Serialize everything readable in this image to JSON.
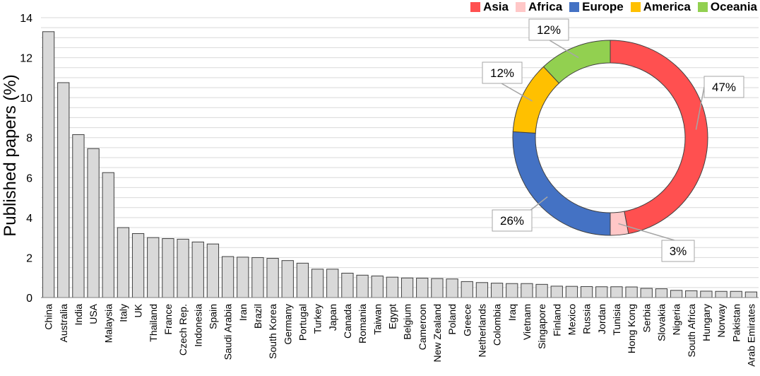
{
  "chart_data": [
    {
      "type": "bar",
      "ylabel": "Published papers (%)",
      "ylim": [
        0,
        14
      ],
      "yticks": [
        0,
        2,
        4,
        6,
        8,
        10,
        12,
        14
      ],
      "categories": [
        "China",
        "Australia",
        "India",
        "USA",
        "Malaysia",
        "Italy",
        "UK",
        "Thailand",
        "France",
        "Czech Rep.",
        "Indonesia",
        "Spain",
        "Saudi Arabia",
        "Iran",
        "Brazil",
        "South Korea",
        "Germany",
        "Portugal",
        "Turkey",
        "Japan",
        "Canada",
        "Romania",
        "Taiwan",
        "Egypt",
        "Belgium",
        "Cameroon",
        "New Zealand",
        "Poland",
        "Greece",
        "Netherlands",
        "Colombia",
        "Iraq",
        "Vietnam",
        "Singapore",
        "Finland",
        "Mexico",
        "Russia",
        "Jordan",
        "Tunisia",
        "Hong Kong",
        "Serbia",
        "Slovakia",
        "Nigeria",
        "South Africa",
        "Hungary",
        "Norway",
        "Pakistan",
        "Arab Emirates"
      ],
      "values": [
        13.3,
        10.75,
        8.15,
        7.45,
        6.25,
        3.5,
        3.2,
        3.0,
        2.95,
        2.92,
        2.78,
        2.68,
        2.05,
        2.02,
        2.0,
        1.96,
        1.85,
        1.72,
        1.42,
        1.42,
        1.22,
        1.12,
        1.08,
        1.02,
        0.98,
        0.97,
        0.95,
        0.93,
        0.8,
        0.75,
        0.72,
        0.7,
        0.7,
        0.66,
        0.57,
        0.56,
        0.55,
        0.54,
        0.54,
        0.53,
        0.46,
        0.44,
        0.36,
        0.34,
        0.32,
        0.31,
        0.31,
        0.28
      ],
      "grid": true,
      "bar_color": "#d9d9d9"
    },
    {
      "type": "pie",
      "donut": true,
      "categories": [
        "Asia",
        "Africa",
        "Europe",
        "America",
        "Oceania"
      ],
      "values": [
        47,
        3,
        26,
        12,
        12
      ],
      "labels": [
        "47%",
        "3%",
        "26%",
        "12%",
        "12%"
      ],
      "colors": [
        "#ff5050",
        "#ffc7c7",
        "#4472c4",
        "#ffc000",
        "#92d050"
      ],
      "legend_position": "top-right"
    }
  ],
  "legend": [
    {
      "name": "Asia",
      "color": "#ff5050"
    },
    {
      "name": "Africa",
      "color": "#ffc7c7"
    },
    {
      "name": "Europe",
      "color": "#4472c4"
    },
    {
      "name": "America",
      "color": "#ffc000"
    },
    {
      "name": "Oceania",
      "color": "#92d050"
    }
  ]
}
